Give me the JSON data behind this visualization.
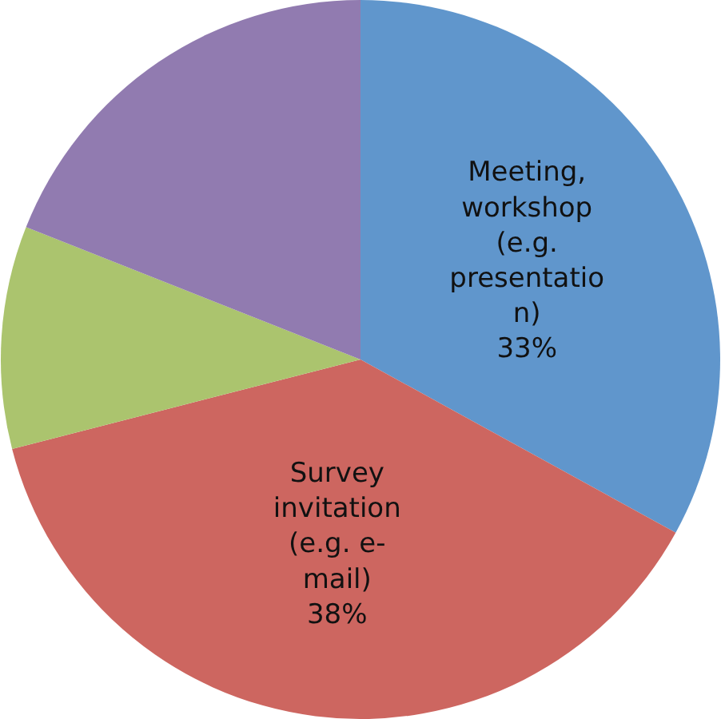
{
  "chart_data": {
    "type": "pie",
    "categories": [
      "Meeting, workshop (e.g. presentation)",
      "Survey invitation (e.g. e-mail)",
      null,
      null
    ],
    "values": [
      33,
      38,
      10,
      19
    ],
    "value_labels": [
      "33%",
      "38%",
      null,
      null
    ],
    "colors": [
      "#6096cc",
      "#cd6660",
      "#abc46e",
      "#917bb0"
    ]
  }
}
